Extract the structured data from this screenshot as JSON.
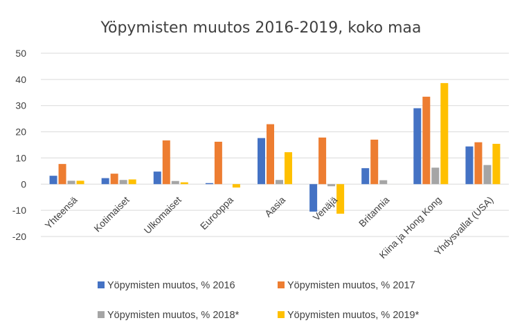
{
  "chart_data": {
    "type": "bar",
    "title": "Yöpymisten muutos 2016-2019, koko maa",
    "categories": [
      "Yhteensä",
      "Kotimaiset",
      "Ulkomaiset",
      "Eurooppa",
      "Aasia",
      "Venäjä",
      "Britannia",
      "Kiina ja Hong Kong",
      "Yhdysvallat (USA)"
    ],
    "series": [
      {
        "name": "Yöpymisten muutos, % 2016",
        "color": "#4472C4",
        "values": [
          3.2,
          2.3,
          4.8,
          0.4,
          17.6,
          -10.5,
          6.1,
          29.0,
          14.4
        ]
      },
      {
        "name": "Yöpymisten muutos, % 2017",
        "color": "#ED7D31",
        "values": [
          7.7,
          4.0,
          16.7,
          16.2,
          22.9,
          17.8,
          17.0,
          33.4,
          16.0
        ]
      },
      {
        "name": "Yöpymisten muutos, % 2018*",
        "color": "#A5A5A5",
        "values": [
          1.3,
          1.6,
          1.2,
          0.0,
          1.6,
          -0.8,
          1.5,
          6.3,
          7.3
        ]
      },
      {
        "name": "Yöpymisten muutos, % 2019*",
        "color": "#FFC000",
        "values": [
          1.3,
          1.8,
          0.7,
          -1.3,
          12.2,
          -11.3,
          0.0,
          38.6,
          15.4
        ]
      }
    ],
    "ylim": [
      -20,
      50
    ],
    "yticks": [
      "-20",
      "-10",
      "0",
      "10",
      "20",
      "30",
      "40",
      "50"
    ],
    "grid": true,
    "legend_position": "bottom"
  }
}
